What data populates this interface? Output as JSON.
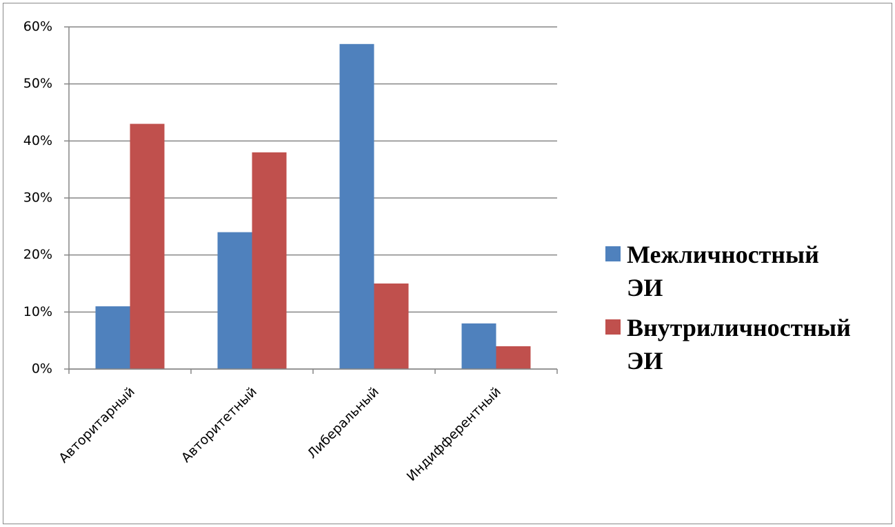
{
  "chart_data": {
    "type": "bar",
    "categories": [
      "Авторитарный",
      "Авторитетный",
      "Либеральный",
      "Индифферентный"
    ],
    "series": [
      {
        "name": "Межличностный ЭИ",
        "color": "#4f81bd",
        "values": [
          11,
          24,
          57,
          8
        ]
      },
      {
        "name": "Внутриличностный ЭИ",
        "color": "#c0504d",
        "values": [
          43,
          38,
          15,
          4
        ]
      }
    ],
    "ylim": [
      0,
      60
    ],
    "yticks": [
      {
        "value": 0,
        "label": "0%"
      },
      {
        "value": 10,
        "label": "10%"
      },
      {
        "value": 20,
        "label": "20%"
      },
      {
        "value": 30,
        "label": "30%"
      },
      {
        "value": 40,
        "label": "40%"
      },
      {
        "value": 50,
        "label": "50%"
      },
      {
        "value": 60,
        "label": "60%"
      }
    ],
    "grid": true,
    "legend": "right"
  }
}
